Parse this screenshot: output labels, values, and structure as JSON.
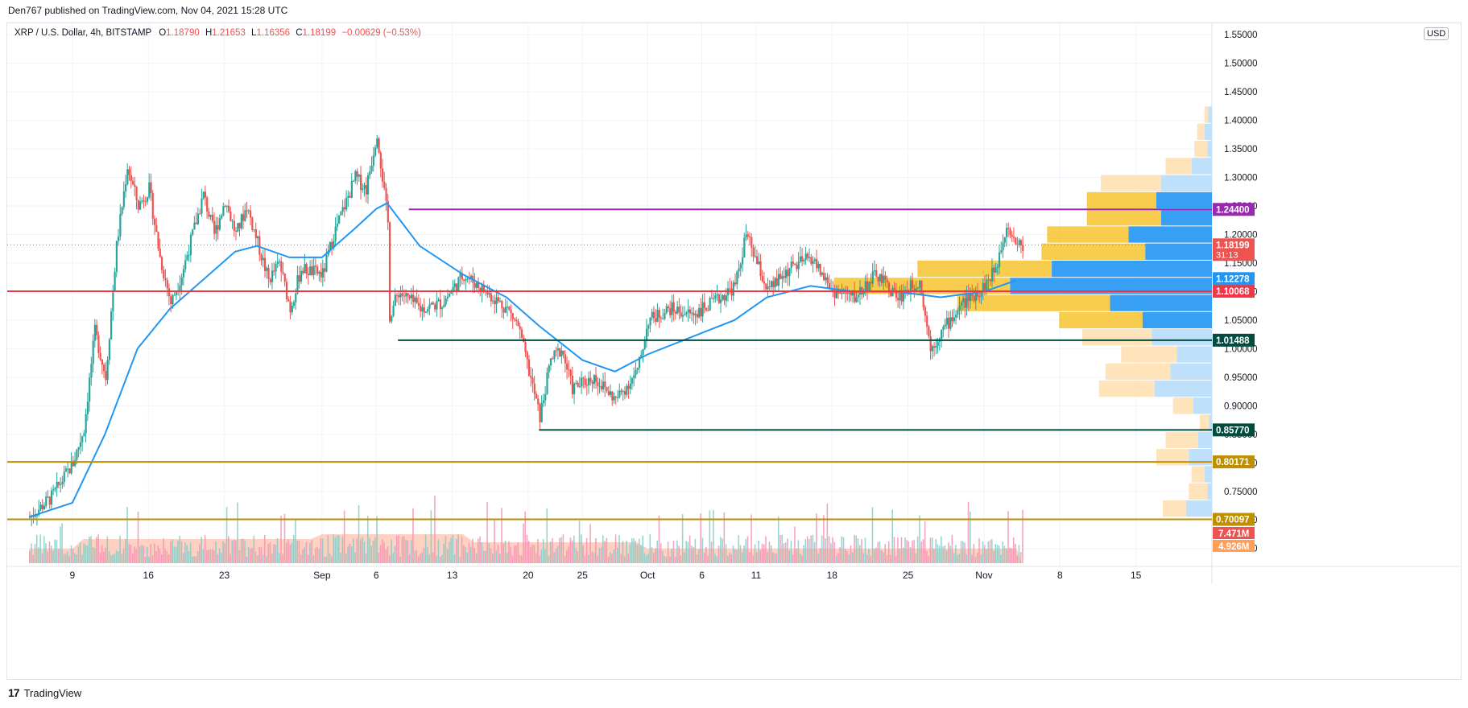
{
  "header": {
    "publish_line": "Den767 published on TradingView.com, Nov 04, 2021 15:28 UTC",
    "currency": "USD"
  },
  "legend": {
    "symbol": "XRP / U.S. Dollar, 4h, BITSTAMP",
    "o_label": "O",
    "o_value": "1.18790",
    "h_label": "H",
    "h_value": "1.21653",
    "l_label": "L",
    "l_value": "1.16356",
    "c_label": "C",
    "c_value": "1.18199",
    "change": "−0.00629 (−0.53%)"
  },
  "footer": {
    "brand": "TradingView",
    "logo": "17"
  },
  "colors": {
    "up": "#26a69a",
    "down": "#ef5350",
    "ma": "#2196f3",
    "red_line": "#f23645",
    "purple_line": "#9c27b0",
    "teal_line": "#004d40",
    "gold_line": "#bf8f00",
    "vp_blue": "#2196f3",
    "vp_yellow": "#f5b700",
    "vp_blue_light": "#bbdefb",
    "vp_yellow_light": "#ffe0b2",
    "volume_ma": "#ffab91"
  },
  "chart_data": {
    "type": "candlestick",
    "title": "XRP / U.S. Dollar, 4h, BITSTAMP",
    "y_ticks": [
      "1.55000",
      "1.50000",
      "1.45000",
      "1.40000",
      "1.35000",
      "1.30000",
      "1.25000",
      "1.20000",
      "1.15000",
      "1.10000",
      "1.05000",
      "1.00000",
      "0.95000",
      "0.90000",
      "0.85000",
      "0.80000",
      "0.75000",
      "0.70000",
      "0.65000"
    ],
    "ylim": [
      0.62,
      1.57
    ],
    "x_ticks": [
      {
        "label": "9",
        "date": "2021-08-09"
      },
      {
        "label": "16",
        "date": "2021-08-16"
      },
      {
        "label": "23",
        "date": "2021-08-23"
      },
      {
        "label": "Sep",
        "date": "2021-09-01"
      },
      {
        "label": "6",
        "date": "2021-09-06"
      },
      {
        "label": "13",
        "date": "2021-09-13"
      },
      {
        "label": "20",
        "date": "2021-09-20"
      },
      {
        "label": "25",
        "date": "2021-09-25"
      },
      {
        "label": "Oct",
        "date": "2021-10-01"
      },
      {
        "label": "6",
        "date": "2021-10-06"
      },
      {
        "label": "11",
        "date": "2021-10-11"
      },
      {
        "label": "18",
        "date": "2021-10-18"
      },
      {
        "label": "25",
        "date": "2021-10-25"
      },
      {
        "label": "Nov",
        "date": "2021-11-01"
      },
      {
        "label": "8",
        "date": "2021-11-08"
      },
      {
        "label": "15",
        "date": "2021-11-15"
      }
    ],
    "price_path": [
      [
        "2021-08-05",
        0.705
      ],
      [
        "2021-08-07",
        0.74
      ],
      [
        "2021-08-09",
        0.8
      ],
      [
        "2021-08-10",
        0.86
      ],
      [
        "2021-08-11",
        1.03
      ],
      [
        "2021-08-12",
        0.95
      ],
      [
        "2021-08-13",
        1.18
      ],
      [
        "2021-08-14",
        1.32
      ],
      [
        "2021-08-15",
        1.25
      ],
      [
        "2021-08-16",
        1.28
      ],
      [
        "2021-08-17",
        1.16
      ],
      [
        "2021-08-18",
        1.08
      ],
      [
        "2021-08-19",
        1.13
      ],
      [
        "2021-08-20",
        1.2
      ],
      [
        "2021-08-21",
        1.27
      ],
      [
        "2021-08-22",
        1.2
      ],
      [
        "2021-08-23",
        1.26
      ],
      [
        "2021-08-24",
        1.2
      ],
      [
        "2021-08-25",
        1.25
      ],
      [
        "2021-08-27",
        1.12
      ],
      [
        "2021-08-28",
        1.15
      ],
      [
        "2021-08-29",
        1.07
      ],
      [
        "2021-08-30",
        1.14
      ],
      [
        "2021-09-01",
        1.13
      ],
      [
        "2021-09-02",
        1.2
      ],
      [
        "2021-09-03",
        1.25
      ],
      [
        "2021-09-04",
        1.3
      ],
      [
        "2021-09-05",
        1.28
      ],
      [
        "2021-09-06",
        1.38
      ],
      [
        "2021-09-07",
        1.22
      ],
      [
        "2021-09-07",
        1.05
      ],
      [
        "2021-09-08",
        1.1
      ],
      [
        "2021-09-10",
        1.07
      ],
      [
        "2021-09-12",
        1.08
      ],
      [
        "2021-09-14",
        1.13
      ],
      [
        "2021-09-16",
        1.1
      ],
      [
        "2021-09-18",
        1.07
      ],
      [
        "2021-09-19",
        1.04
      ],
      [
        "2021-09-20",
        0.96
      ],
      [
        "2021-09-21",
        0.88
      ],
      [
        "2021-09-22",
        0.98
      ],
      [
        "2021-09-23",
        1.0
      ],
      [
        "2021-09-24",
        0.93
      ],
      [
        "2021-09-26",
        0.95
      ],
      [
        "2021-09-28",
        0.91
      ],
      [
        "2021-09-30",
        0.96
      ],
      [
        "2021-10-01",
        1.05
      ],
      [
        "2021-10-03",
        1.07
      ],
      [
        "2021-10-05",
        1.06
      ],
      [
        "2021-10-07",
        1.08
      ],
      [
        "2021-10-09",
        1.11
      ],
      [
        "2021-10-10",
        1.2
      ],
      [
        "2021-10-11",
        1.15
      ],
      [
        "2021-10-12",
        1.1
      ],
      [
        "2021-10-14",
        1.14
      ],
      [
        "2021-10-16",
        1.16
      ],
      [
        "2021-10-18",
        1.1
      ],
      [
        "2021-10-20",
        1.09
      ],
      [
        "2021-10-22",
        1.13
      ],
      [
        "2021-10-24",
        1.09
      ],
      [
        "2021-10-26",
        1.12
      ],
      [
        "2021-10-27",
        1.0
      ],
      [
        "2021-10-28",
        1.03
      ],
      [
        "2021-10-30",
        1.08
      ],
      [
        "2021-11-01",
        1.11
      ],
      [
        "2021-11-02",
        1.14
      ],
      [
        "2021-11-03",
        1.22
      ],
      [
        "2021-11-04",
        1.182
      ]
    ],
    "moving_average": [
      [
        "2021-08-05",
        0.705
      ],
      [
        "2021-08-09",
        0.73
      ],
      [
        "2021-08-12",
        0.85
      ],
      [
        "2021-08-15",
        1.0
      ],
      [
        "2021-08-18",
        1.07
      ],
      [
        "2021-08-21",
        1.12
      ],
      [
        "2021-08-24",
        1.17
      ],
      [
        "2021-08-26",
        1.18
      ],
      [
        "2021-08-29",
        1.16
      ],
      [
        "2021-09-01",
        1.16
      ],
      [
        "2021-09-04",
        1.21
      ],
      [
        "2021-09-06",
        1.245
      ],
      [
        "2021-09-07",
        1.255
      ],
      [
        "2021-09-10",
        1.18
      ],
      [
        "2021-09-14",
        1.13
      ],
      [
        "2021-09-18",
        1.09
      ],
      [
        "2021-09-21",
        1.04
      ],
      [
        "2021-09-25",
        0.98
      ],
      [
        "2021-09-28",
        0.96
      ],
      [
        "2021-10-01",
        0.99
      ],
      [
        "2021-10-05",
        1.02
      ],
      [
        "2021-10-09",
        1.05
      ],
      [
        "2021-10-12",
        1.09
      ],
      [
        "2021-10-16",
        1.11
      ],
      [
        "2021-10-20",
        1.1
      ],
      [
        "2021-10-24",
        1.1
      ],
      [
        "2021-10-28",
        1.09
      ],
      [
        "2021-11-01",
        1.1
      ],
      [
        "2021-11-04",
        1.12
      ]
    ],
    "levels": [
      {
        "label": "1.24400",
        "value": 1.244,
        "start": "2021-09-09",
        "color": "#9c27b0",
        "text_color": "#ffffff"
      },
      {
        "label": "1.10068",
        "value": 1.10068,
        "start": "2021-08-03",
        "color": "#f23645",
        "text_color": "#ffffff"
      },
      {
        "label": "1.01488",
        "value": 1.01488,
        "start": "2021-09-08",
        "color": "#004d40",
        "text_color": "#ffffff"
      },
      {
        "label": "0.85770",
        "value": 0.8577,
        "start": "2021-09-21",
        "color": "#004d40",
        "text_color": "#ffffff"
      },
      {
        "label": "0.80171",
        "value": 0.80171,
        "start": "2021-08-03",
        "color": "#bf8f00",
        "text_color": "#ffffff"
      },
      {
        "label": "0.70097",
        "value": 0.70097,
        "start": "2021-08-03",
        "color": "#bf8f00",
        "text_color": "#ffffff"
      }
    ],
    "price_labels": [
      {
        "label": "1.18199",
        "sub": "31:13",
        "value": 1.18199,
        "color": "#ef5350"
      },
      {
        "label": "1.12278",
        "value": 1.12278,
        "color": "#2196f3"
      }
    ],
    "volume_labels": [
      {
        "label": "7.471M",
        "color": "#ef5350"
      },
      {
        "label": "4.926M",
        "color": "#ff9f5a"
      }
    ],
    "volume_profile": [
      {
        "price": 1.41,
        "up": 4,
        "down": 4
      },
      {
        "price": 1.38,
        "up": 8,
        "down": 8
      },
      {
        "price": 1.35,
        "up": 14,
        "down": 5
      },
      {
        "price": 1.32,
        "up": 28,
        "down": 22
      },
      {
        "price": 1.29,
        "up": 65,
        "down": 55
      },
      {
        "price": 1.26,
        "up": 75,
        "down": 60
      },
      {
        "price": 1.23,
        "up": 80,
        "down": 55
      },
      {
        "price": 1.2,
        "up": 88,
        "down": 90
      },
      {
        "price": 1.17,
        "up": 112,
        "down": 72
      },
      {
        "price": 1.14,
        "up": 145,
        "down": 173
      },
      {
        "price": 1.11,
        "up": 190,
        "down": 218
      },
      {
        "price": 1.08,
        "up": 165,
        "down": 110
      },
      {
        "price": 1.05,
        "up": 90,
        "down": 75
      },
      {
        "price": 1.02,
        "up": 75,
        "down": 65
      },
      {
        "price": 0.99,
        "up": 60,
        "down": 38
      },
      {
        "price": 0.96,
        "up": 70,
        "down": 45
      },
      {
        "price": 0.93,
        "up": 60,
        "down": 62
      },
      {
        "price": 0.9,
        "up": 22,
        "down": 20
      },
      {
        "price": 0.87,
        "up": 10,
        "down": 3
      },
      {
        "price": 0.84,
        "up": 35,
        "down": 15
      },
      {
        "price": 0.81,
        "up": 35,
        "down": 25
      },
      {
        "price": 0.78,
        "up": 14,
        "down": 8
      },
      {
        "price": 0.75,
        "up": 20,
        "down": 5
      },
      {
        "price": 0.72,
        "up": 25,
        "down": 28
      }
    ]
  }
}
